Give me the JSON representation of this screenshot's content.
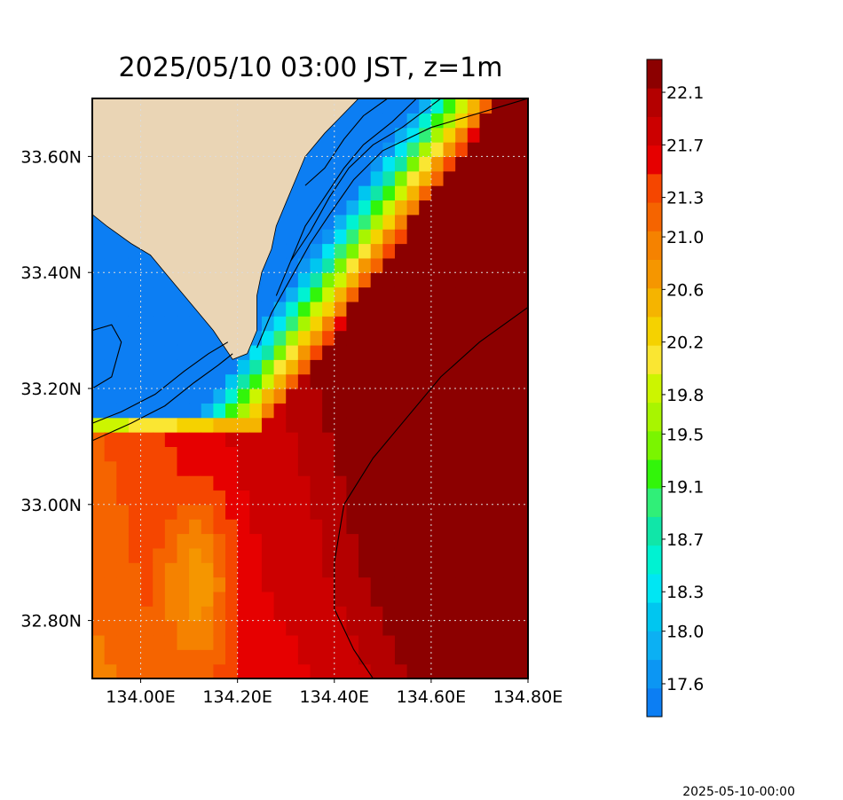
{
  "chart_data": {
    "type": "heatmap",
    "title": "2025/05/10 03:00 JST, z=1m",
    "footer": "2025-05-10-00:00",
    "xlim": [
      133.9,
      134.8
    ],
    "ylim": [
      32.7,
      33.7
    ],
    "x_ticks": [
      {
        "value": 134.0,
        "label": "134.00E"
      },
      {
        "value": 134.2,
        "label": "134.20E"
      },
      {
        "value": 134.4,
        "label": "134.40E"
      },
      {
        "value": 134.6,
        "label": "134.60E"
      },
      {
        "value": 134.8,
        "label": "134.80E"
      }
    ],
    "y_ticks": [
      {
        "value": 33.6,
        "label": "33.60N"
      },
      {
        "value": 33.4,
        "label": "33.40N"
      },
      {
        "value": 33.2,
        "label": "33.20N"
      },
      {
        "value": 33.0,
        "label": "33.00N"
      },
      {
        "value": 32.8,
        "label": "32.80N"
      }
    ],
    "grid": "dotted",
    "land_color": "#ead5b5",
    "colorbar": {
      "levels": [
        "#0c7ef3",
        "#0c96f3",
        "#0cb0f3",
        "#00c6f0",
        "#00e6f3",
        "#00f2d2",
        "#10e6a8",
        "#30ef78",
        "#32f50a",
        "#7af500",
        "#a8f500",
        "#ccf500",
        "#fae632",
        "#f5d200",
        "#f5b400",
        "#f59600",
        "#f58200",
        "#f56400",
        "#f54600",
        "#e60000",
        "#cc0000",
        "#b40000",
        "#8c0000"
      ],
      "ticks": [
        {
          "value": 17.6,
          "label": "17.6"
        },
        {
          "value": 18.0,
          "label": "18.0"
        },
        {
          "value": 18.3,
          "label": "18.3"
        },
        {
          "value": 18.7,
          "label": "18.7"
        },
        {
          "value": 19.1,
          "label": "19.1"
        },
        {
          "value": 19.5,
          "label": "19.5"
        },
        {
          "value": 19.8,
          "label": "19.8"
        },
        {
          "value": 20.2,
          "label": "20.2"
        },
        {
          "value": 20.6,
          "label": "20.6"
        },
        {
          "value": 21.0,
          "label": "21.0"
        },
        {
          "value": 21.3,
          "label": "21.3"
        },
        {
          "value": 21.7,
          "label": "21.7"
        },
        {
          "value": 22.1,
          "label": "22.1"
        }
      ]
    },
    "cell": {
      "dlon": 0.025,
      "dlat": 0.025
    },
    "land_polygon": [
      [
        133.9,
        33.7
      ],
      [
        134.45,
        33.7
      ],
      [
        134.38,
        33.64
      ],
      [
        134.34,
        33.6
      ],
      [
        134.32,
        33.56
      ],
      [
        134.3,
        33.52
      ],
      [
        134.28,
        33.48
      ],
      [
        134.27,
        33.44
      ],
      [
        134.25,
        33.4
      ],
      [
        134.24,
        33.36
      ],
      [
        134.24,
        33.3
      ],
      [
        134.22,
        33.26
      ],
      [
        134.19,
        33.25
      ],
      [
        134.15,
        33.3
      ],
      [
        134.1,
        33.35
      ],
      [
        134.05,
        33.4
      ],
      [
        134.02,
        33.43
      ],
      [
        133.98,
        33.45
      ],
      [
        133.93,
        33.48
      ],
      [
        133.9,
        33.5
      ]
    ],
    "contours": [
      {
        "value": 22.0,
        "points": [
          [
            134.48,
            32.7
          ],
          [
            134.44,
            32.75
          ],
          [
            134.4,
            32.82
          ],
          [
            134.4,
            32.9
          ],
          [
            134.42,
            33.0
          ],
          [
            134.48,
            33.08
          ],
          [
            134.55,
            33.15
          ],
          [
            134.62,
            33.22
          ],
          [
            134.7,
            33.28
          ],
          [
            134.8,
            33.34
          ]
        ]
      },
      {
        "value": 21.0,
        "points": [
          [
            134.24,
            33.27
          ],
          [
            134.27,
            33.33
          ],
          [
            134.31,
            33.39
          ],
          [
            134.35,
            33.45
          ],
          [
            134.39,
            33.5
          ],
          [
            134.44,
            33.56
          ],
          [
            134.5,
            33.61
          ],
          [
            134.6,
            33.65
          ],
          [
            134.8,
            33.7
          ]
        ]
      },
      {
        "value": 20.2,
        "points": [
          [
            133.9,
            33.11
          ],
          [
            133.98,
            33.14
          ],
          [
            134.05,
            33.17
          ],
          [
            134.11,
            33.21
          ],
          [
            134.16,
            33.24
          ],
          [
            134.19,
            33.26
          ]
        ]
      },
      {
        "value": 20.2,
        "points": [
          [
            134.28,
            33.36
          ],
          [
            134.31,
            33.42
          ],
          [
            134.35,
            33.47
          ],
          [
            134.39,
            33.53
          ],
          [
            134.43,
            33.58
          ],
          [
            134.48,
            33.62
          ],
          [
            134.54,
            33.65
          ],
          [
            134.62,
            33.7
          ]
        ]
      },
      {
        "value": 19.5,
        "points": [
          [
            133.9,
            33.14
          ],
          [
            133.96,
            33.16
          ],
          [
            134.03,
            33.19
          ],
          [
            134.09,
            33.23
          ],
          [
            134.14,
            33.26
          ],
          [
            134.18,
            33.28
          ]
        ]
      },
      {
        "value": 19.5,
        "points": [
          [
            134.31,
            33.42
          ],
          [
            134.34,
            33.48
          ],
          [
            134.38,
            33.53
          ],
          [
            134.42,
            33.58
          ],
          [
            134.46,
            33.62
          ],
          [
            134.52,
            33.66
          ],
          [
            134.57,
            33.7
          ]
        ]
      },
      {
        "value": 18.7,
        "points": [
          [
            133.9,
            33.3
          ],
          [
            133.94,
            33.31
          ],
          [
            133.96,
            33.28
          ],
          [
            133.94,
            33.22
          ],
          [
            133.9,
            33.2
          ]
        ]
      },
      {
        "value": 18.7,
        "points": [
          [
            134.34,
            33.55
          ],
          [
            134.38,
            33.58
          ],
          [
            134.42,
            33.63
          ],
          [
            134.46,
            33.67
          ],
          [
            134.51,
            33.7
          ]
        ]
      }
    ]
  }
}
